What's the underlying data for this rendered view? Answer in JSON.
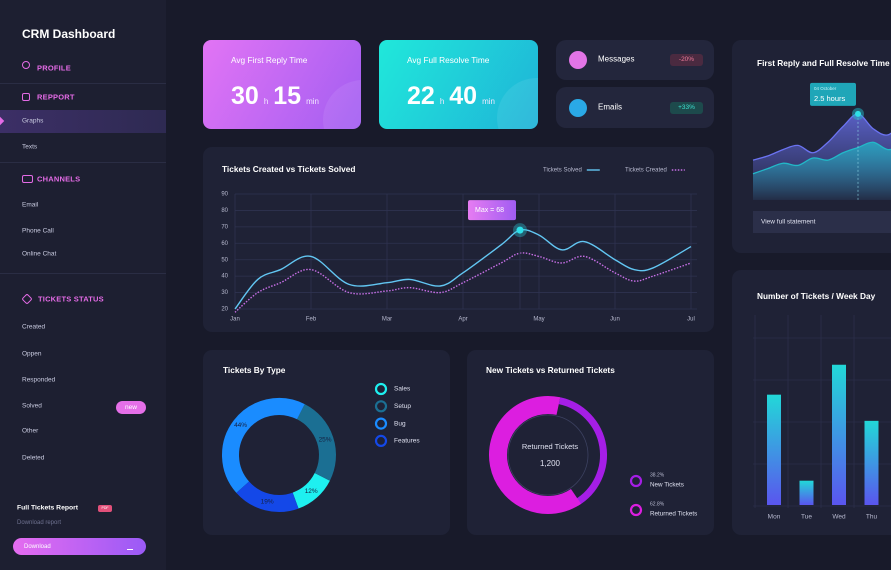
{
  "sidebar": {
    "title": "CRM Dashboard",
    "menu": [
      {
        "label": "PROFILE"
      },
      {
        "label": "REPPORT",
        "items": [
          "Graphs",
          "Texts"
        ]
      },
      {
        "label": "CHANNELS",
        "items": [
          "Email",
          "Phone Call",
          "Online Chat"
        ]
      },
      {
        "label": "TICKETS STATUS",
        "items": [
          "Created",
          "Oppen",
          "Responded",
          "Solved",
          "Other",
          "Deleted"
        ]
      }
    ],
    "badge": "new",
    "report": {
      "title": "Full Tickets Report",
      "tag": "PDF",
      "subtitle": "Download report",
      "button": "Download"
    }
  },
  "cards": [
    {
      "title": "Avg First Reply Time",
      "values": [
        30,
        15
      ],
      "units": [
        "h",
        "min"
      ]
    },
    {
      "title": "Avg Full Resolve Time",
      "values": [
        22,
        40
      ],
      "units": [
        "h",
        "min"
      ]
    }
  ],
  "notifications": [
    {
      "label": "Messages",
      "change": "-20%"
    },
    {
      "label": "Emails",
      "change": "+33%"
    }
  ],
  "chart_data": [
    {
      "type": "area",
      "title": "First Reply and Full Resolve Time",
      "x": [
        0,
        1,
        2,
        3,
        4,
        5,
        6,
        7,
        8,
        9,
        10
      ],
      "xlim": [
        0,
        10
      ],
      "ylim": [
        0,
        100
      ],
      "series": [
        {
          "color": "#6b73f2",
          "values": [
            38,
            42,
            48,
            52,
            45,
            55,
            70,
            82,
            68,
            62,
            75
          ]
        },
        {
          "color": "#22b8c8",
          "values": [
            25,
            30,
            35,
            33,
            40,
            38,
            45,
            50,
            55,
            48,
            52
          ]
        }
      ],
      "tooltip": {
        "title": "04 October",
        "value": "2.5 hours"
      },
      "link": "View full statement"
    },
    {
      "type": "line",
      "title": "Tickets Created vs Tickets Solved",
      "x": [
        0,
        0.3,
        0.6,
        1,
        1.5,
        2,
        2.3,
        2.7,
        3,
        3.5,
        3.75,
        4,
        4.3,
        4.6,
        5,
        5.25,
        5.5,
        6
      ],
      "xlim": [
        0,
        6
      ],
      "xticks": [
        {
          "value": 0,
          "label": "Jan"
        },
        {
          "value": 1,
          "label": "Feb"
        },
        {
          "value": 2,
          "label": "Mar"
        },
        {
          "value": 3,
          "label": "Apr"
        },
        {
          "value": 4,
          "label": "May"
        },
        {
          "value": 5,
          "label": "Jun"
        },
        {
          "value": 6,
          "label": "Jul"
        }
      ],
      "ylim": [
        20,
        90
      ],
      "yticks": [
        20,
        30,
        40,
        50,
        60,
        70,
        80,
        90
      ],
      "grid": true,
      "series": [
        {
          "name": "Tickets Solved",
          "color": "#62c6f2",
          "dash": false,
          "values": [
            20,
            38,
            44,
            52,
            35,
            36,
            38,
            34,
            42,
            59,
            68,
            65,
            56,
            61,
            50,
            44,
            45,
            58
          ]
        },
        {
          "name": "Tickets Created",
          "color": "#c76fe6",
          "dash": true,
          "values": [
            18,
            30,
            36,
            44,
            30,
            31,
            33,
            30,
            36,
            48,
            54,
            52,
            48,
            52,
            42,
            37,
            40,
            48
          ]
        }
      ],
      "annotation": "Max = 68"
    },
    {
      "type": "pie",
      "title": "Tickets By Type",
      "categories": [
        "Sales",
        "Setup",
        "Bug",
        "Features"
      ],
      "values": [
        12,
        25,
        44,
        19
      ],
      "value_labels": [
        "12%",
        "25%",
        "44%",
        "19%"
      ],
      "colors": [
        "#1ef0f0",
        "#1b6f93",
        "#1a8cff",
        "#1448e8"
      ]
    },
    {
      "type": "ring",
      "title": "New Tickets vs Returned Tickets",
      "categories": [
        "New Tickets",
        "Returned Tickets"
      ],
      "values": [
        38.2,
        62.8
      ],
      "value_labels": [
        "38.2%",
        "62.8%"
      ],
      "colors": [
        "#a51ee6",
        "#dc1ee0"
      ],
      "center_label": "Returned Tickets",
      "center_value": {
        "value": 1200,
        "label": "1,200"
      }
    },
    {
      "type": "bar",
      "title": "Number of Tickets / Week Day",
      "categories": [
        "Mon",
        "Tue",
        "Wed",
        "Thu"
      ],
      "values": [
        59,
        13,
        75,
        45
      ],
      "ylim": [
        0,
        100
      ],
      "colors": [
        "#22d8d8",
        "#5a55ee"
      ]
    }
  ]
}
